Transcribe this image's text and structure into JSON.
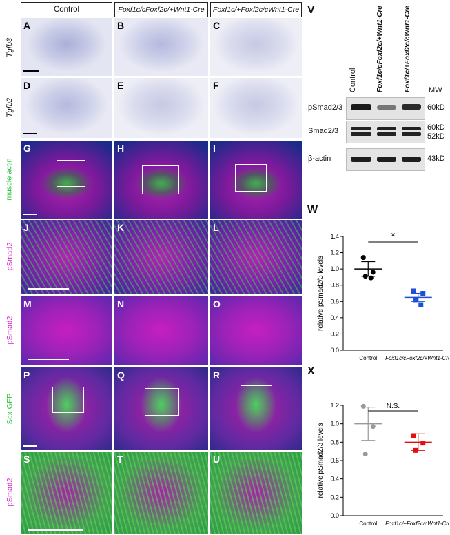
{
  "figure": {
    "column_headers": {
      "control": "Control",
      "foxf_cc_ca": "Foxf1c/cFoxf2c/+Wnt1-Cre",
      "foxf_ca_cc": "Foxf1c/+Foxf2c/cWnt1-Cre"
    },
    "row_labels": {
      "tgfb3": "Tgfb3",
      "tgfb2": "Tgfb2",
      "muscle_actin": "muscle actin",
      "psmad2_a": "pSmad2",
      "psmad2_b": "pSmad2",
      "scx_gfp": "Scx-GFP",
      "psmad2_c": "pSmad2"
    },
    "panel_letters": [
      "A",
      "B",
      "C",
      "D",
      "E",
      "F",
      "G",
      "H",
      "I",
      "J",
      "K",
      "L",
      "M",
      "N",
      "O",
      "P",
      "Q",
      "R",
      "S",
      "T",
      "U"
    ]
  },
  "western": {
    "letter": "V",
    "lanes": [
      "Control",
      "Foxf1c/cFoxf2c/+Wnt1-Cre",
      "Foxf1c/+Foxf2c/cWnt1-Cre"
    ],
    "mw_header": "MW",
    "blots": [
      {
        "name": "pSmad2/3",
        "mw": [
          "60kD"
        ]
      },
      {
        "name": "Smad2/3",
        "mw": [
          "60kD",
          "52kD"
        ]
      },
      {
        "name": "β-actin",
        "mw": [
          "43kD"
        ]
      }
    ]
  },
  "chart_data": [
    {
      "type": "scatter",
      "letter": "W",
      "ylabel": "relative pSmad2/3 levels",
      "ylim": [
        0,
        1.4
      ],
      "yticks": [
        "0.0",
        "0.2",
        "0.4",
        "0.6",
        "0.8",
        "1.0",
        "1.2",
        "1.4"
      ],
      "categories": [
        "Control",
        "Foxf1c/cFoxf2c/+Wnt1-Cre"
      ],
      "series": [
        {
          "category": "Control",
          "color": "#000000",
          "marker": "circle",
          "points": [
            1.14,
            0.96,
            0.91,
            0.89
          ],
          "mean": 1.0,
          "sem": 0.09
        },
        {
          "category": "Foxf1c/cFoxf2c/+Wnt1-Cre",
          "color": "#1f4fd8",
          "marker": "square",
          "points": [
            0.73,
            0.7,
            0.62,
            0.56
          ],
          "mean": 0.65,
          "sem": 0.05
        }
      ],
      "significance": "*"
    },
    {
      "type": "scatter",
      "letter": "X",
      "ylabel": "relative pSmad2/3 levels",
      "ylim": [
        0,
        1.2
      ],
      "yticks": [
        "0.0",
        "0.2",
        "0.4",
        "0.6",
        "0.8",
        "1.0",
        "1.2"
      ],
      "categories": [
        "Control",
        "Foxf1c/+Foxf2c/cWnt1-Cre"
      ],
      "series": [
        {
          "category": "Control",
          "color": "#999999",
          "marker": "circle",
          "points": [
            1.19,
            0.97,
            0.67
          ],
          "mean": 1.0,
          "sem": 0.18
        },
        {
          "category": "Foxf1c/+Foxf2c/cWnt1-Cre",
          "color": "#e01010",
          "marker": "square",
          "points": [
            0.87,
            0.79,
            0.71
          ],
          "mean": 0.8,
          "sem": 0.09
        }
      ],
      "significance": "N.S."
    }
  ]
}
